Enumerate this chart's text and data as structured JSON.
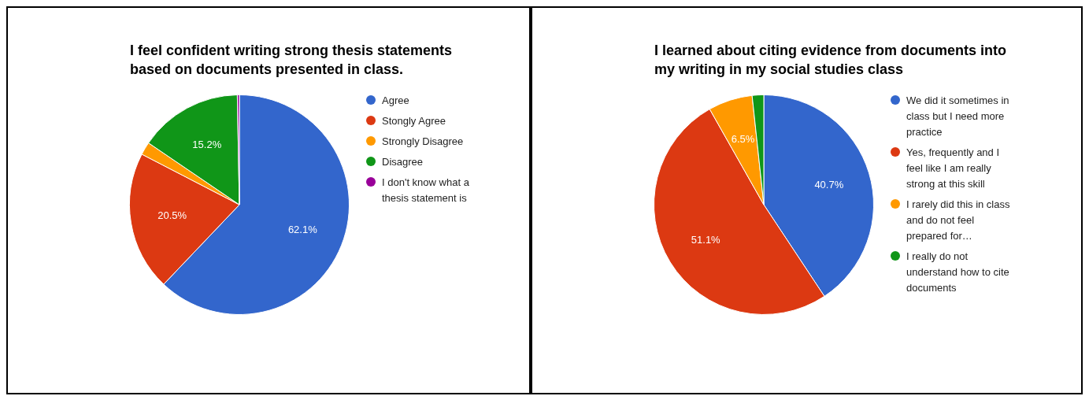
{
  "chart_data": [
    {
      "type": "pie",
      "title": "I feel confident writing strong thesis statements based on documents presented in class.",
      "categories": [
        "Agree",
        "Stongly Agree",
        "Strongly Disagree",
        "Disagree",
        "I don't know what a thesis statement is"
      ],
      "values": [
        62.1,
        20.5,
        1.9,
        15.2,
        0.3
      ],
      "colors": [
        "#3366cc",
        "#dc3912",
        "#ff9900",
        "#109618",
        "#990099"
      ],
      "value_labels": [
        "62.1%",
        "20.5%",
        null,
        "15.2%",
        null
      ],
      "legend": "right"
    },
    {
      "type": "pie",
      "title": "I learned about citing evidence from documents into my writing in my social studies class",
      "categories": [
        "We did it sometimes in class but I need more practice",
        "Yes, frequently and I feel like I am really strong at this skill",
        "I rarely did this in class and do not feel prepared for…",
        "I really do not understand how to cite documents"
      ],
      "values": [
        40.7,
        51.1,
        6.5,
        1.7
      ],
      "colors": [
        "#3366cc",
        "#dc3912",
        "#ff9900",
        "#109618"
      ],
      "value_labels": [
        "40.7%",
        "51.1%",
        "6.5%",
        null
      ],
      "legend": "right"
    }
  ]
}
